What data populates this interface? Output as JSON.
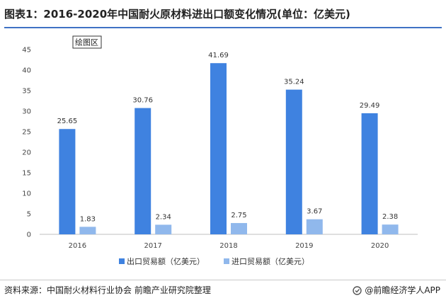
{
  "header": {
    "title": "图表1：2016-2020年中国耐火原材料进出口额变化情况(单位：亿美元)"
  },
  "footer": {
    "source": "资料来源：中国耐火材料行业协会 前瞻产业研究院整理",
    "brand": "@前瞻经济学人APP"
  },
  "chart_data": {
    "type": "bar",
    "categories": [
      "2016",
      "2017",
      "2018",
      "2019",
      "2020"
    ],
    "series": [
      {
        "name": "出口贸易额（亿美元）",
        "color": "#3f82e0",
        "values": [
          25.65,
          30.76,
          41.69,
          35.24,
          29.49
        ]
      },
      {
        "name": "进口贸易额（亿美元）",
        "color": "#90b8ec",
        "values": [
          1.83,
          2.34,
          2.75,
          3.67,
          2.38
        ]
      }
    ],
    "ylim": [
      0,
      45
    ],
    "yticks": [
      0,
      5,
      10,
      15,
      20,
      25,
      30,
      35,
      40,
      45
    ],
    "title": "",
    "xlabel": "",
    "ylabel": "",
    "grid": false,
    "legend": "bottom-center",
    "plot_area_tag": "绘图区"
  }
}
